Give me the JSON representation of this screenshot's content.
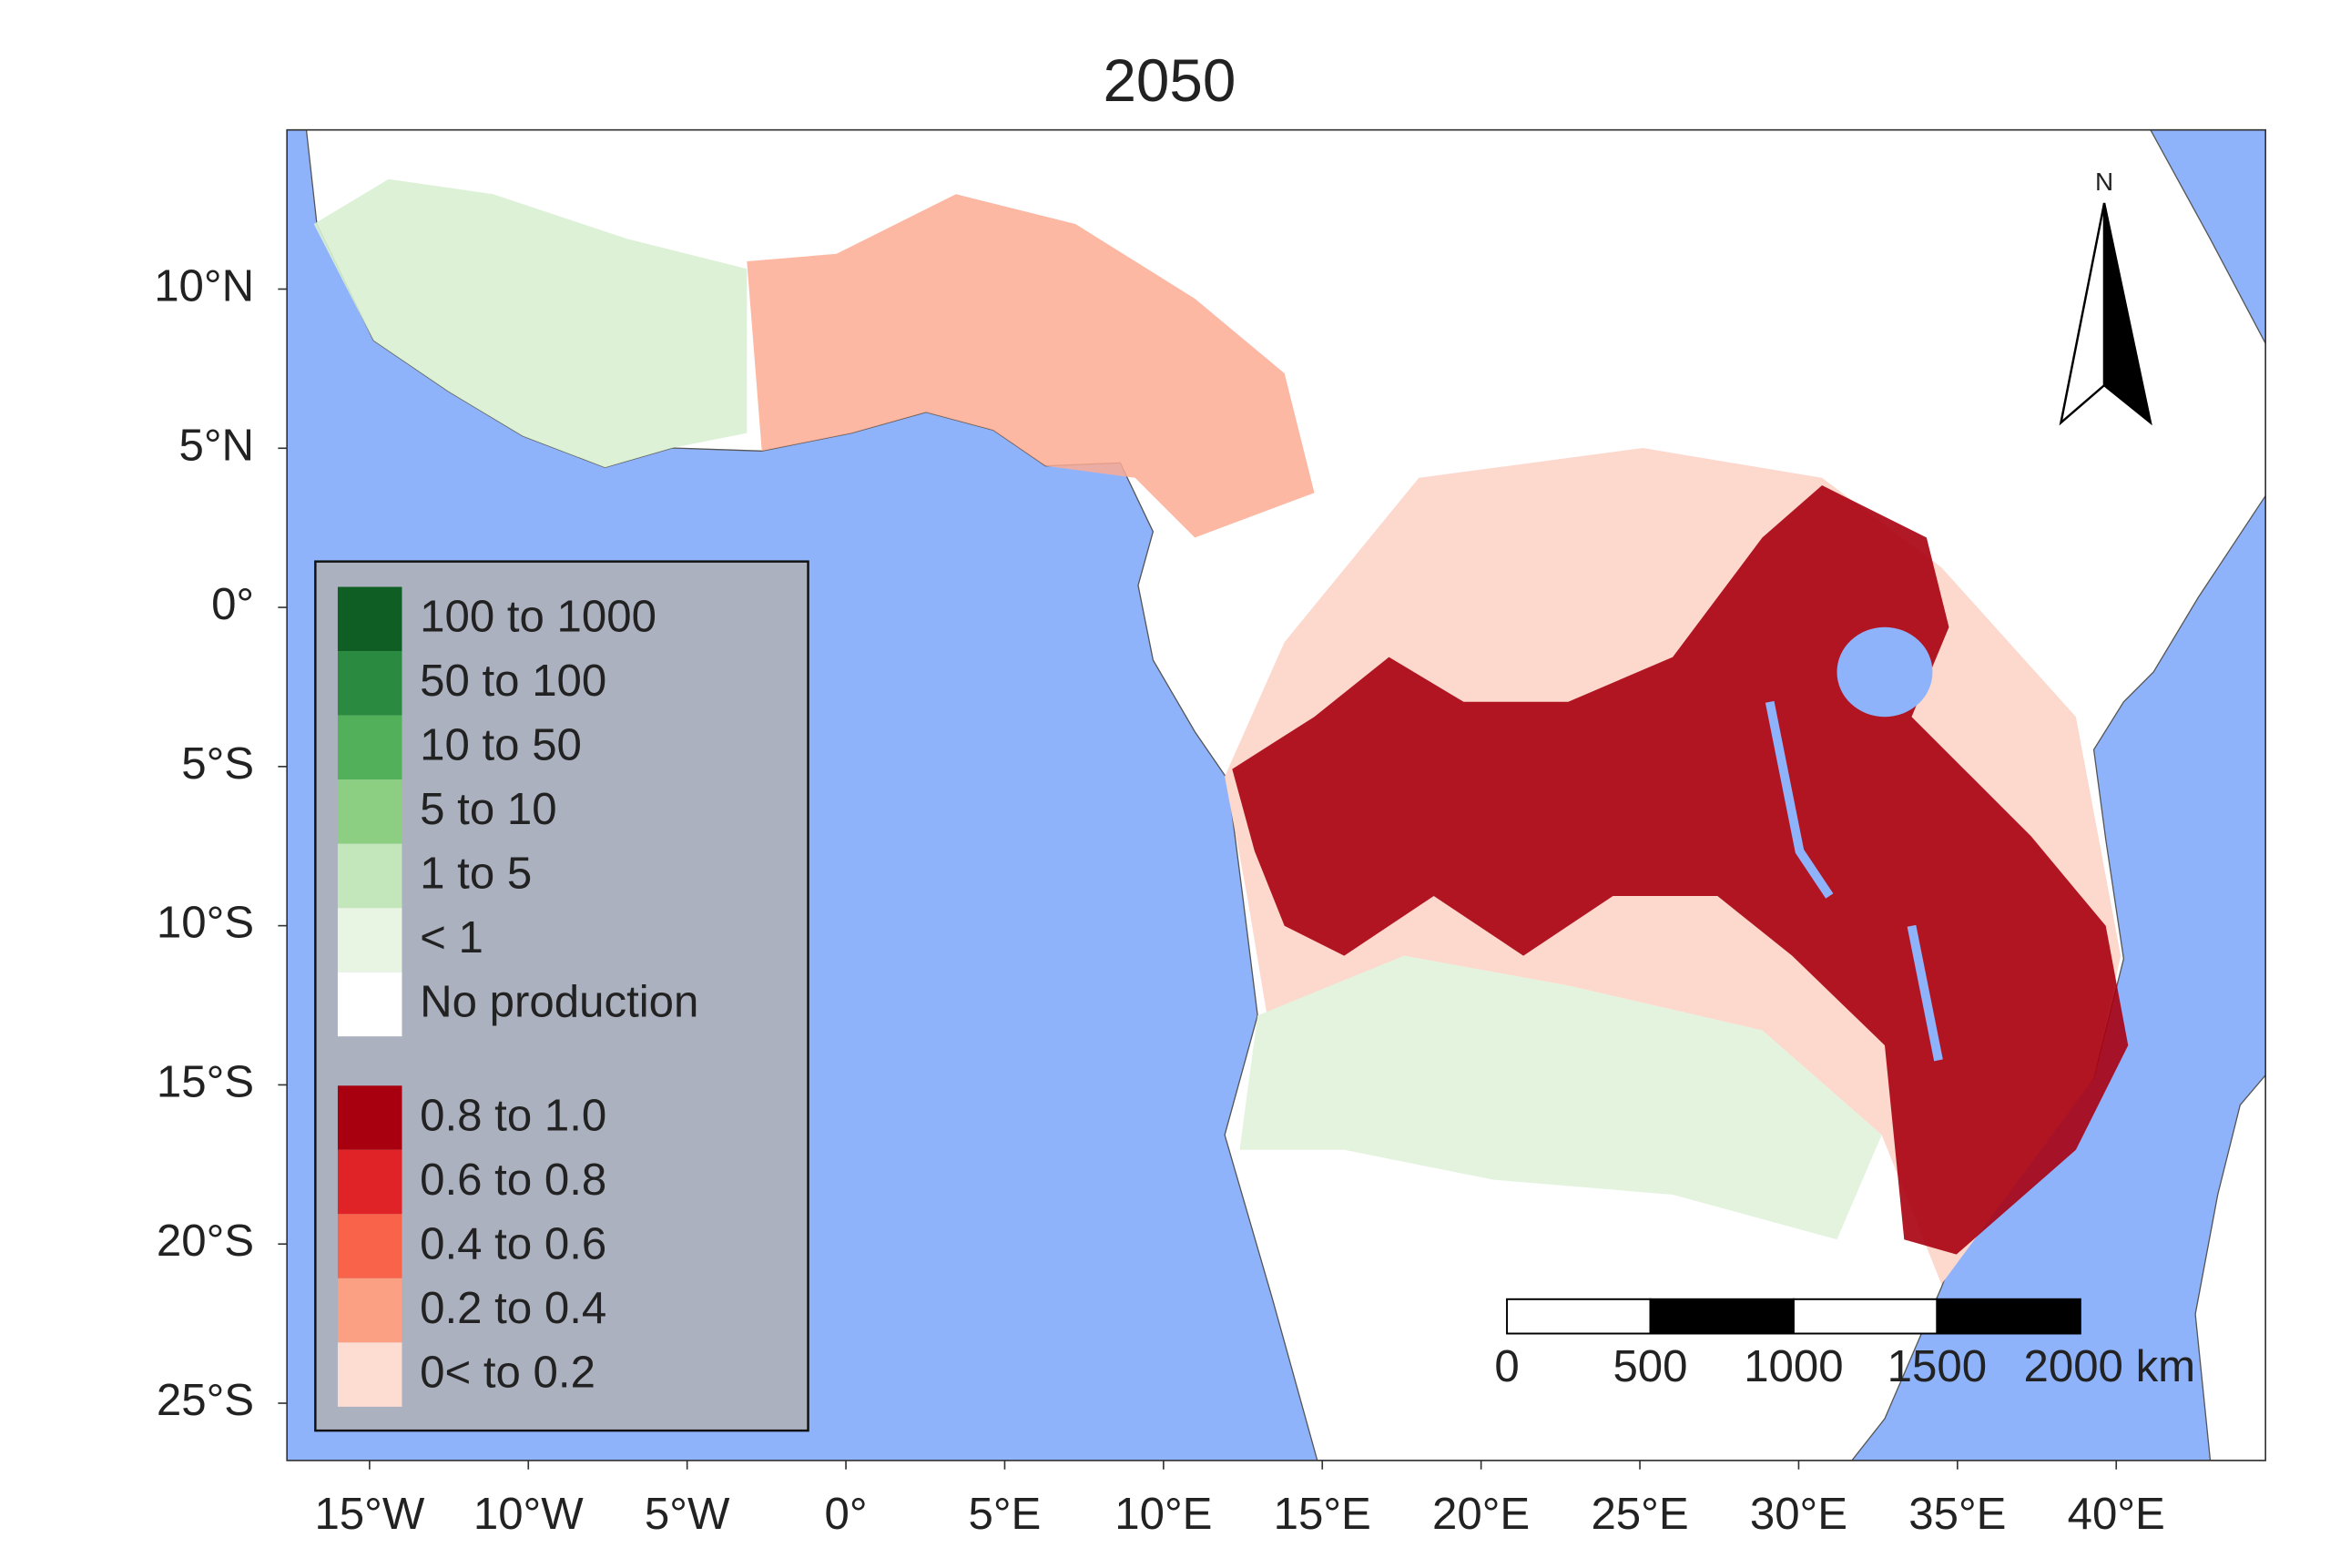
{
  "map": {
    "title": "2050",
    "xlim": [
      -17.6,
      44.7
    ],
    "ylim": [
      -26.8,
      15.0
    ],
    "xticks": [
      {
        "value": -15,
        "label": "15°W"
      },
      {
        "value": -10,
        "label": "10°W"
      },
      {
        "value": -5,
        "label": "5°W"
      },
      {
        "value": 0,
        "label": "0°"
      },
      {
        "value": 5,
        "label": "5°E"
      },
      {
        "value": 10,
        "label": "10°E"
      },
      {
        "value": 15,
        "label": "15°E"
      },
      {
        "value": 20,
        "label": "20°E"
      },
      {
        "value": 25,
        "label": "25°E"
      },
      {
        "value": 30,
        "label": "30°E"
      },
      {
        "value": 35,
        "label": "35°E"
      },
      {
        "value": 40,
        "label": "40°E"
      }
    ],
    "yticks": [
      {
        "value": 10,
        "label": "10°N"
      },
      {
        "value": 5,
        "label": "5°N"
      },
      {
        "value": 0,
        "label": "0°"
      },
      {
        "value": -5,
        "label": "5°S"
      },
      {
        "value": -10,
        "label": "10°S"
      },
      {
        "value": -15,
        "label": "15°S"
      },
      {
        "value": -20,
        "label": "20°S"
      },
      {
        "value": -25,
        "label": "25°S"
      }
    ],
    "legend": {
      "groups": [
        {
          "items": [
            {
              "label": "100 to 1000",
              "color": "#0f5f25"
            },
            {
              "label": "50 to 100",
              "color": "#2a8a40"
            },
            {
              "label": "10 to 50",
              "color": "#52b05a"
            },
            {
              "label": "5 to 10",
              "color": "#8ccf82"
            },
            {
              "label": "1 to 5",
              "color": "#c3e6bb"
            },
            {
              "label": "< 1",
              "color": "#e8f5e3"
            },
            {
              "label": "No production",
              "color": "#ffffff"
            }
          ]
        },
        {
          "items": [
            {
              "label": "0.8 to 1.0",
              "color": "#a8000f"
            },
            {
              "label": "0.6 to 0.8",
              "color": "#e02326"
            },
            {
              "label": "0.4 to 0.6",
              "color": "#f9634a"
            },
            {
              "label": "0.2 to 0.4",
              "color": "#fba083"
            },
            {
              "label": "0< to 0.2",
              "color": "#fddcd2"
            }
          ]
        }
      ]
    },
    "scale_bar": {
      "labels": [
        "0",
        "500",
        "1000",
        "1500",
        "2000 km"
      ]
    },
    "north_arrow": "N"
  }
}
